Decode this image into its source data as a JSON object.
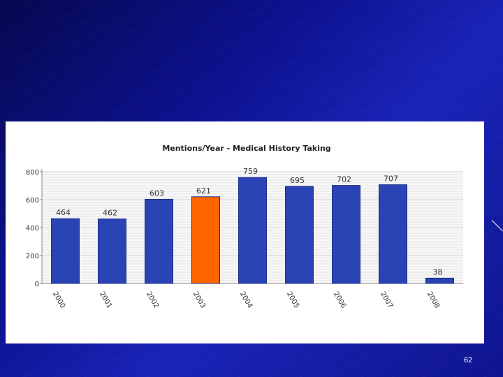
{
  "slide": {
    "page_number": "62"
  },
  "colors": {
    "bar": "#2a44b5",
    "bar_edge": "#1a2d8a",
    "highlight": "#ff6600",
    "background": "#0d1290",
    "panel": "#ffffff"
  },
  "chart_data": {
    "type": "bar",
    "title": "Mentions/Year - Medical History Taking",
    "xlabel": "",
    "ylabel": "",
    "categories": [
      "2000",
      "2001",
      "2002",
      "2003",
      "2004",
      "2005",
      "2006",
      "2007",
      "2008"
    ],
    "values": [
      464,
      462,
      603,
      621,
      759,
      695,
      702,
      707,
      38
    ],
    "data_labels": [
      "464",
      "462",
      "603",
      "621",
      "759",
      "695",
      "702",
      "707",
      "38"
    ],
    "highlight_category": "2003",
    "ylim": [
      0,
      800
    ],
    "yticks": [
      0,
      200,
      400,
      600,
      800
    ],
    "grid": true,
    "legend": "none"
  }
}
